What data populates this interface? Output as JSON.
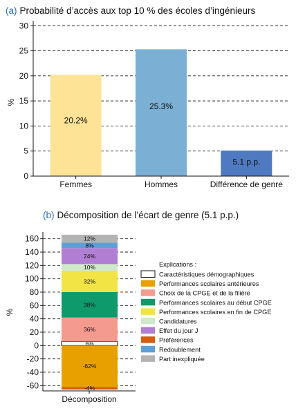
{
  "chart_data": [
    {
      "type": "bar",
      "tag": "(a)",
      "title": "Probabilité d’accès aux top 10 % des écoles d’ingénieurs",
      "ylabel": "%",
      "ylim": [
        0,
        31
      ],
      "yticks": [
        0,
        5,
        10,
        15,
        20,
        25,
        30
      ],
      "grid": "horizontal-dashed",
      "categories": [
        "Femmes",
        "Hommes",
        "Différence de genre"
      ],
      "values": [
        20.2,
        25.3,
        5.1
      ],
      "data_labels": [
        "20.2%",
        "25.3%",
        "5.1 p.p."
      ],
      "colors": [
        "#fde396",
        "#7bafd4",
        "#4f79c0"
      ]
    },
    {
      "type": "stacked-bar",
      "tag": "(b)",
      "title": "Décomposition de l’écart de genre (5.1 p.p.)",
      "ylabel": "%",
      "ylim": [
        -68,
        170
      ],
      "yticks": [
        -60,
        -40,
        -20,
        0,
        20,
        40,
        60,
        80,
        100,
        120,
        140,
        160
      ],
      "grid": "horizontal-dashed",
      "categories": [
        "Décomposition"
      ],
      "legend_title": "Explications :",
      "legend_position": "right",
      "series": [
        {
          "name": "Caractéristiques démographiques",
          "value": 6,
          "label": "6%",
          "color": "#ffffff"
        },
        {
          "name": "Performances scolaires antérieures",
          "value": -62,
          "label": "-62%",
          "color": "#e8a000"
        },
        {
          "name": "Choix de la CPGE et de la filière",
          "value": 36,
          "label": "36%",
          "color": "#f49a8e"
        },
        {
          "name": "Performances scolaires au début CPGE",
          "value": 38,
          "label": "38%",
          "color": "#0e9a6a"
        },
        {
          "name": "Performances scolaires en fin de CPGE",
          "value": 32,
          "label": "32%",
          "color": "#f2e444"
        },
        {
          "name": "Candidatures",
          "value": 10,
          "label": "10%",
          "color": "#cfe9cb"
        },
        {
          "name": "Effet du jour J",
          "value": 24,
          "label": "24%",
          "color": "#b07fd4"
        },
        {
          "name": "Préférences",
          "value": -4,
          "label": "-4%",
          "color": "#d35f0e"
        },
        {
          "name": "Redoublement",
          "value": 8,
          "label": "8%",
          "color": "#5f9fd9"
        },
        {
          "name": "Part inexpliquée",
          "value": 12,
          "label": "12%",
          "color": "#b3b3b3"
        }
      ],
      "stack_order": [
        "Caractéristiques démographiques",
        "Choix de la CPGE et de la filière",
        "Performances scolaires au début CPGE",
        "Performances scolaires en fin de CPGE",
        "Candidatures",
        "Effet du jour J",
        "Redoublement",
        "Part inexpliquée",
        "Performances scolaires antérieures",
        "Préférences"
      ]
    }
  ]
}
